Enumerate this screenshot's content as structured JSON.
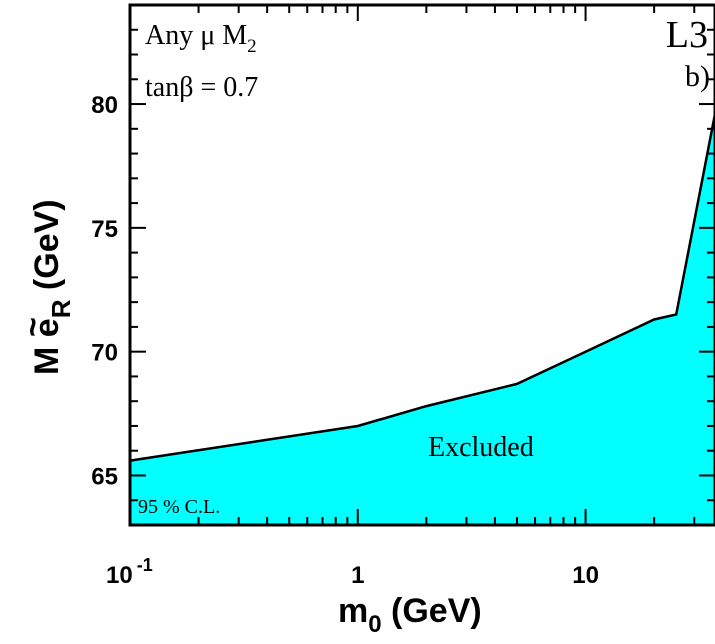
{
  "chart_data": {
    "type": "area",
    "x_scale": "log",
    "xlim": [
      0.1,
      37
    ],
    "ylim": [
      63,
      84
    ],
    "x_ticks": [
      {
        "value": 0.1,
        "base": "10",
        "exp": "-1"
      },
      {
        "value": 1,
        "base": "1",
        "exp": ""
      },
      {
        "value": 10,
        "base": "10",
        "exp": ""
      }
    ],
    "y_ticks": [
      65,
      70,
      75,
      80
    ],
    "xlabel": {
      "main": "m",
      "sub": "0",
      "unit": " (GeV)"
    },
    "ylabel": {
      "main": "M ",
      "tilde": "~",
      "letter": "e",
      "sub": "R",
      "unit": " (GeV)"
    },
    "series": [
      {
        "region": "Excluded",
        "fill_color": "#00ffff",
        "boundary": {
          "x": [
            0.1,
            1,
            2,
            5,
            10,
            20,
            25,
            37
          ],
          "y": [
            65.6,
            67.0,
            67.8,
            68.7,
            70.0,
            71.3,
            71.5,
            79.6
          ]
        }
      }
    ],
    "annotations": {
      "params_line1": "Any μ  M",
      "params_line1_sub": "2",
      "params_line2": "tanβ =  0.7",
      "experiment": "L3",
      "panel": "b)",
      "region_label": "Excluded",
      "confidence": "95 % C.L."
    },
    "grid": false
  }
}
